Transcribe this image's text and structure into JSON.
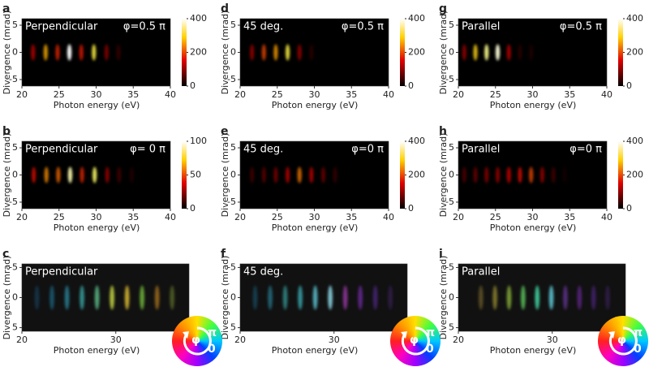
{
  "chart_data": [
    {
      "type": "heatmap",
      "panel": "a",
      "label": "Perpendicular",
      "phase": "φ=0.5 π",
      "xlabel": "Photon energy (eV)",
      "ylabel": "Divergence (mrad)",
      "xlim": [
        20,
        40
      ],
      "ylim": [
        -6.2,
        6.2
      ],
      "xticks": [
        20,
        25,
        30,
        35,
        40
      ],
      "yticks": [
        -5,
        0,
        5
      ],
      "zlim": [
        0,
        400
      ],
      "zticks": [
        0,
        200,
        400
      ],
      "x": [
        21.5,
        23.2,
        24.8,
        26.4,
        28.0,
        29.7,
        31.4,
        33.0
      ],
      "values": [
        140,
        260,
        180,
        400,
        170,
        300,
        110,
        50
      ]
    },
    {
      "type": "heatmap",
      "panel": "b",
      "label": "Perpendicular",
      "phase": "φ= 0 π",
      "xlabel": "Photon energy (eV)",
      "ylabel": "Divergence (mrad)",
      "xlim": [
        20,
        40
      ],
      "ylim": [
        -6.2,
        6.2
      ],
      "xticks": [
        20,
        25,
        30,
        35,
        40
      ],
      "yticks": [
        -5,
        0,
        5
      ],
      "zlim": [
        0,
        100
      ],
      "zticks": [
        0,
        50,
        100
      ],
      "x": [
        21.6,
        23.3,
        24.9,
        26.5,
        28.1,
        29.8,
        31.5,
        33.1,
        34.8
      ],
      "values": [
        40,
        60,
        55,
        90,
        45,
        80,
        30,
        15,
        8
      ]
    },
    {
      "type": "phase-map",
      "panel": "c",
      "label": "Perpendicular",
      "xlabel": "Photon energy (eV)",
      "ylabel": "Divergence (mrad)",
      "xlim": [
        20,
        37.8
      ],
      "ylim": [
        -5.6,
        5.6
      ],
      "y_inverted": true,
      "xticks": [
        20,
        30
      ],
      "yticks": [
        -5,
        0,
        5
      ],
      "wheel_labels": [
        "φ",
        "π",
        "0"
      ],
      "x": [
        21.6,
        23.2,
        24.8,
        26.4,
        28.0,
        29.6,
        31.2,
        32.8,
        34.4,
        36.0
      ],
      "values": [
        0.3,
        0.45,
        0.6,
        0.7,
        0.8,
        0.9,
        0.85,
        0.75,
        0.55,
        0.4
      ],
      "colors": [
        "#2080c0",
        "#20a0d0",
        "#30b0d0",
        "#40c0c0",
        "#60c890",
        "#c0d040",
        "#e0c030",
        "#80d040",
        "#f0a020",
        "#a0c040"
      ]
    },
    {
      "type": "heatmap",
      "panel": "d",
      "label": "45 deg.",
      "phase": "φ=0.5 π",
      "xlabel": "Photon energy (eV)",
      "ylabel": "Divergence (mrad)",
      "xlim": [
        20,
        40
      ],
      "ylim": [
        -6.2,
        6.2
      ],
      "xticks": [
        20,
        25,
        30,
        35,
        40
      ],
      "yticks": [
        -5,
        0,
        5
      ],
      "zlim": [
        0,
        400
      ],
      "zticks": [
        0,
        200,
        400
      ],
      "x": [
        21.6,
        23.2,
        24.8,
        26.4,
        28.0,
        29.6
      ],
      "values": [
        120,
        200,
        250,
        300,
        120,
        40
      ]
    },
    {
      "type": "heatmap",
      "panel": "e",
      "label": "45 deg.",
      "phase": "φ=0  π",
      "xlabel": "Photon energy (eV)",
      "ylabel": "Divergence (mrad)",
      "xlim": [
        20,
        40
      ],
      "ylim": [
        -6.2,
        6.2
      ],
      "xticks": [
        20,
        25,
        30,
        35,
        40
      ],
      "yticks": [
        -5,
        0,
        5
      ],
      "zlim": [
        0,
        400
      ],
      "zticks": [
        0,
        200,
        400
      ],
      "x": [
        21.6,
        23.2,
        24.8,
        26.4,
        28.0,
        29.6,
        31.2,
        32.8
      ],
      "values": [
        60,
        80,
        100,
        140,
        230,
        140,
        90,
        50
      ]
    },
    {
      "type": "phase-map",
      "panel": "f",
      "label": "45 deg.",
      "xlabel": "Photon energy (eV)",
      "ylabel": "Divergence (mrad)",
      "xlim": [
        20,
        37.8
      ],
      "ylim": [
        -5.6,
        5.6
      ],
      "y_inverted": true,
      "xticks": [
        20,
        30
      ],
      "yticks": [
        -5,
        0,
        5
      ],
      "wheel_labels": [
        "φ",
        "π",
        "0"
      ],
      "x": [
        21.6,
        23.2,
        24.8,
        26.4,
        28.0,
        29.6,
        31.2,
        32.8,
        34.4,
        36.0
      ],
      "values": [
        0.35,
        0.5,
        0.6,
        0.7,
        0.8,
        0.85,
        0.7,
        0.6,
        0.5,
        0.35
      ],
      "colors": [
        "#2090c0",
        "#30b0d0",
        "#40c0c0",
        "#40c8d0",
        "#60d0e0",
        "#90e0f0",
        "#b040c0",
        "#9030d0",
        "#7030c0",
        "#6030a0"
      ]
    },
    {
      "type": "heatmap",
      "panel": "g",
      "label": "Parallel",
      "phase": "φ=0.5 π",
      "xlabel": "Photon energy (eV)",
      "ylabel": "Divergence (mrad)",
      "xlim": [
        20,
        40
      ],
      "ylim": [
        -6.2,
        6.2
      ],
      "xticks": [
        20,
        25,
        30,
        35,
        40
      ],
      "yticks": [
        -5,
        0,
        5
      ],
      "zlim": [
        0,
        400
      ],
      "zticks": [
        0,
        200,
        400
      ],
      "x": [
        20.8,
        22.3,
        23.8,
        25.3,
        26.8,
        28.3,
        29.8
      ],
      "values": [
        120,
        280,
        340,
        380,
        140,
        40,
        30
      ]
    },
    {
      "type": "heatmap",
      "panel": "h",
      "label": "Parallel",
      "phase": "φ=0  π",
      "xlabel": "Photon energy (eV)",
      "ylabel": "Divergence (mrad)",
      "xlim": [
        20,
        40
      ],
      "ylim": [
        -6.2,
        6.2
      ],
      "xticks": [
        20,
        25,
        30,
        35,
        40
      ],
      "yticks": [
        -5,
        0,
        5
      ],
      "zlim": [
        0,
        400
      ],
      "zticks": [
        0,
        200,
        400
      ],
      "x": [
        20.8,
        22.3,
        23.8,
        25.3,
        26.8,
        28.3,
        29.8,
        31.3,
        32.8,
        34.3
      ],
      "values": [
        70,
        90,
        110,
        120,
        150,
        160,
        200,
        120,
        60,
        20
      ]
    },
    {
      "type": "phase-map",
      "panel": "i",
      "label": "Parallel",
      "xlabel": "Photon energy (eV)",
      "ylabel": "Divergence (mrad)",
      "xlim": [
        20,
        37.8
      ],
      "ylim": [
        -5.6,
        5.6
      ],
      "y_inverted": true,
      "xticks": [
        20,
        30
      ],
      "yticks": [
        -5,
        0,
        5
      ],
      "wheel_labels": [
        "φ",
        "π",
        "0"
      ],
      "x": [
        22.4,
        23.9,
        25.4,
        26.9,
        28.4,
        29.9,
        31.4,
        32.9,
        34.4,
        35.9
      ],
      "values": [
        0.4,
        0.55,
        0.7,
        0.8,
        0.9,
        0.85,
        0.6,
        0.5,
        0.45,
        0.35
      ],
      "colors": [
        "#c0a040",
        "#d0c040",
        "#a0d040",
        "#60d060",
        "#40d0a0",
        "#60d0e0",
        "#8040c0",
        "#9030d0",
        "#7030c0",
        "#6030a0"
      ]
    }
  ]
}
